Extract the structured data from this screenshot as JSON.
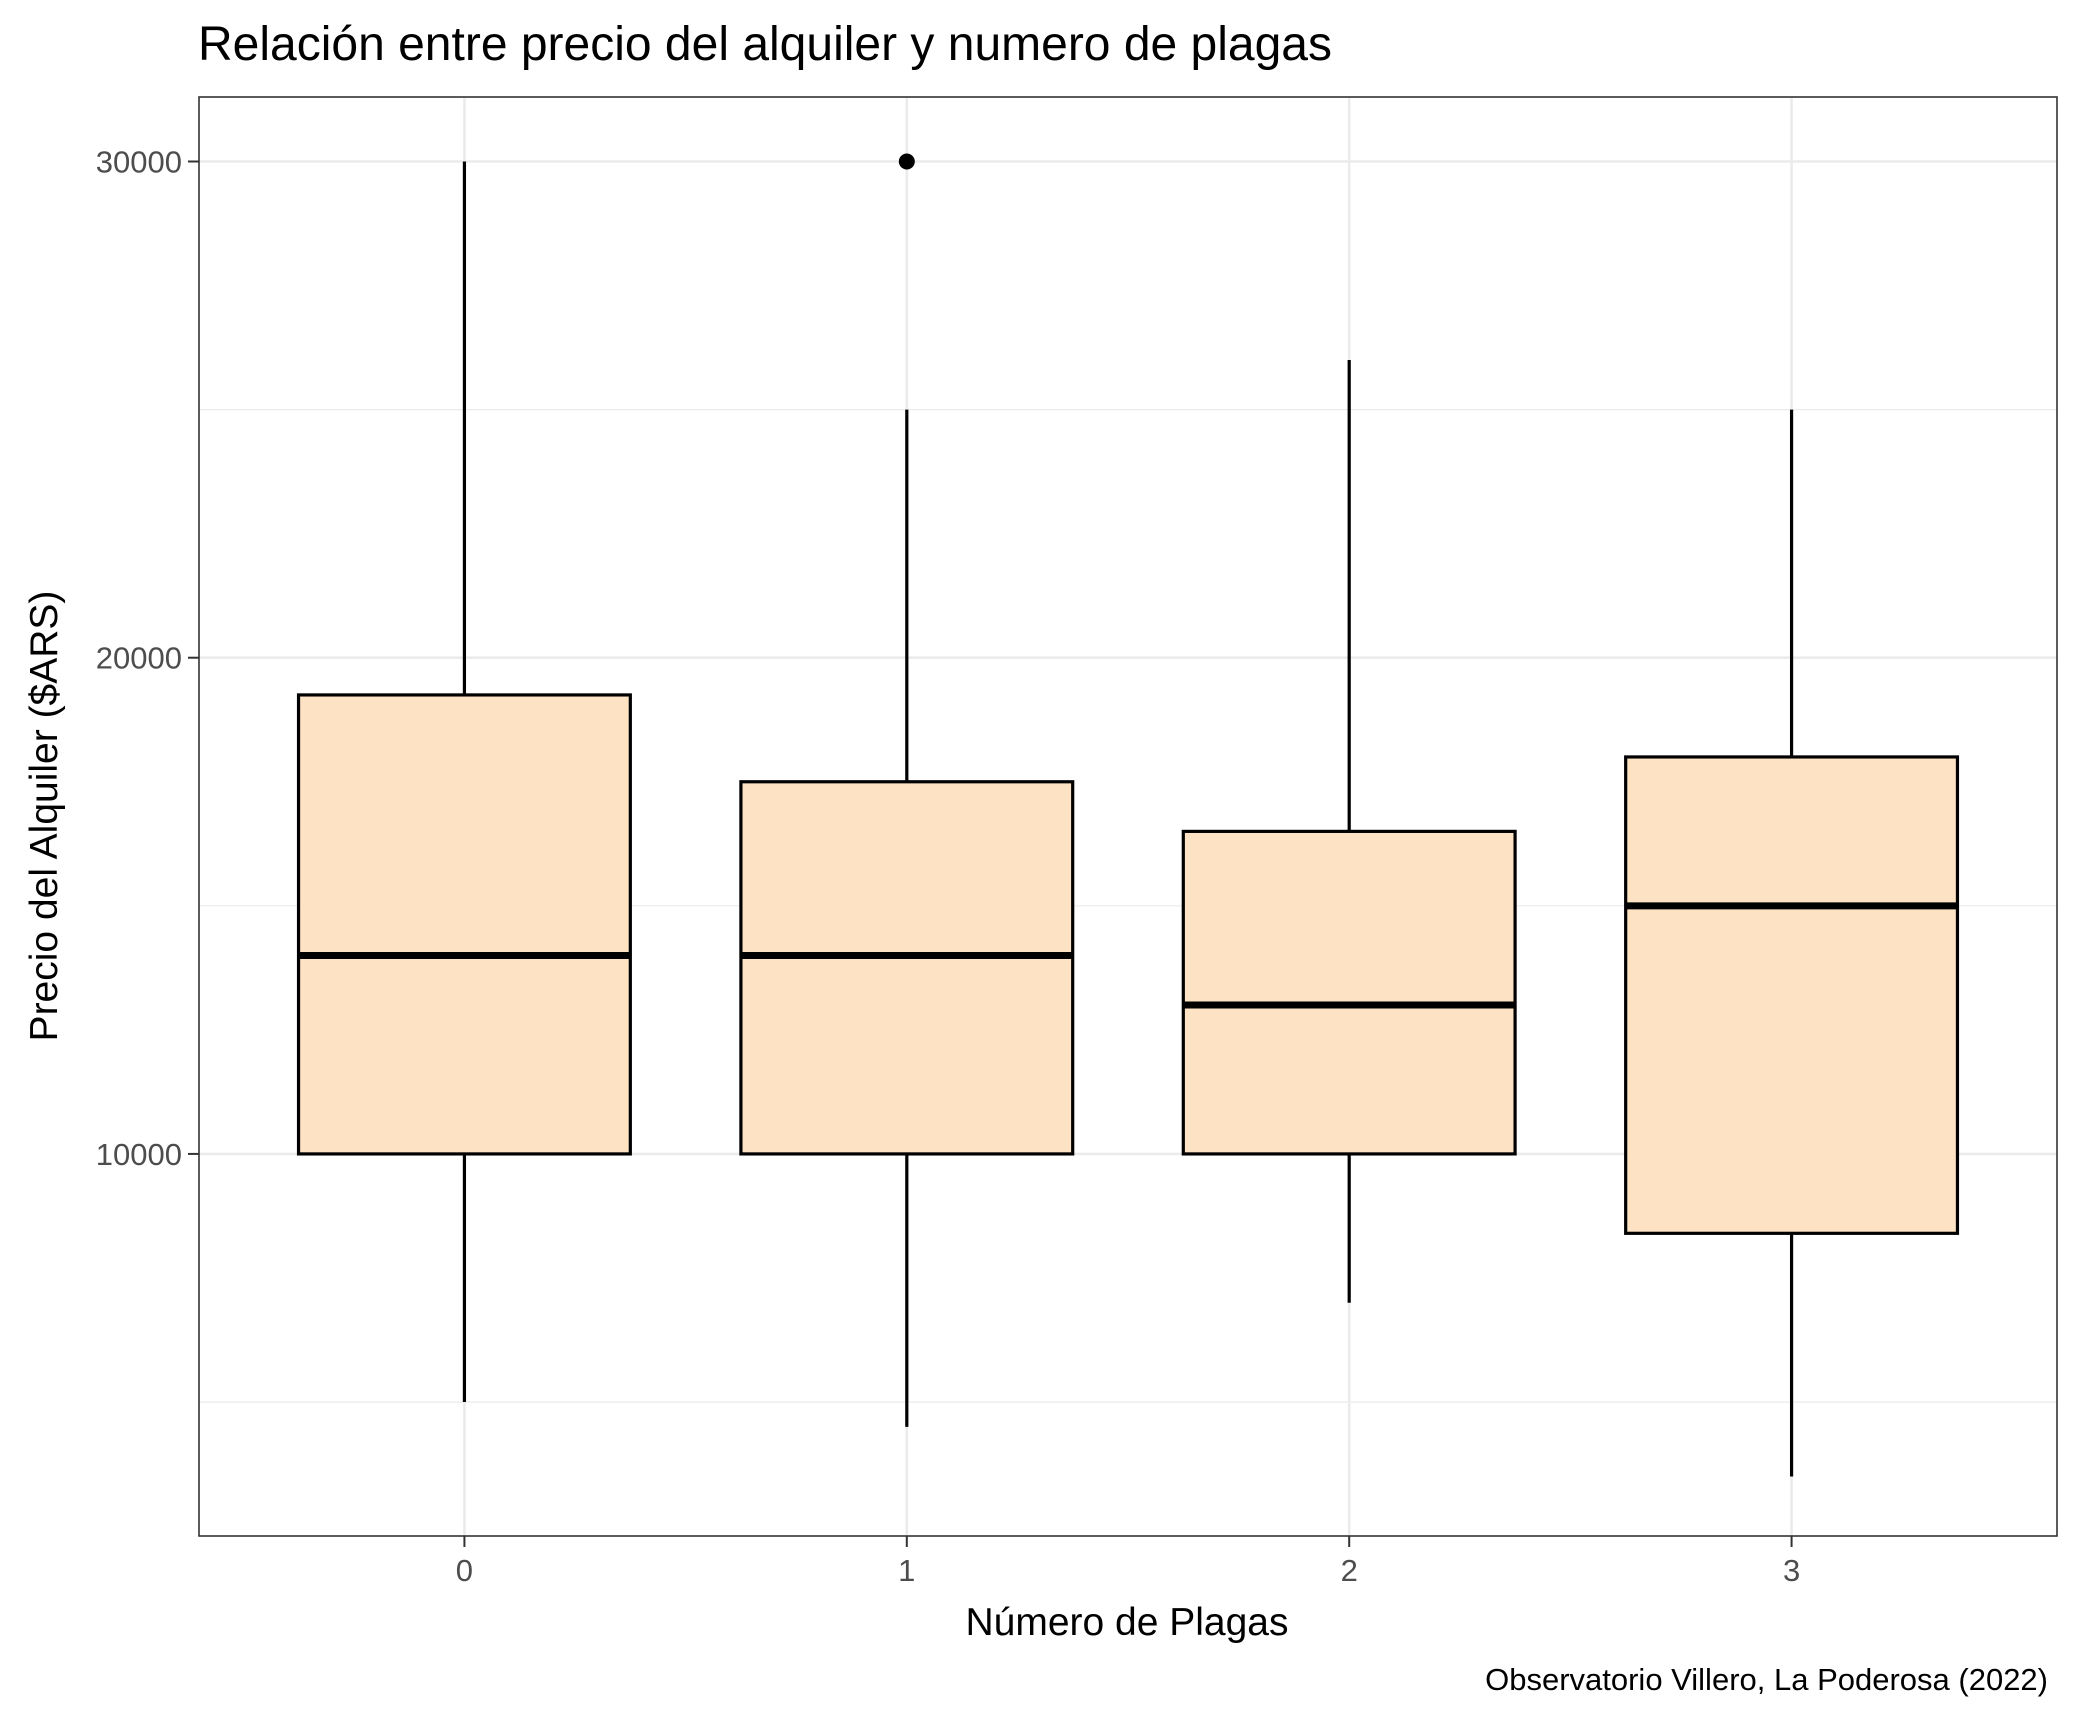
{
  "chart_data": {
    "type": "boxplot",
    "title": "Relación entre precio del alquiler y numero de plagas",
    "xlabel": "Número de Plagas",
    "ylabel": "Precio del Alquiler ($ARS)",
    "caption": "Observatorio Villero, La Poderosa (2022)",
    "categories": [
      "0",
      "1",
      "2",
      "3"
    ],
    "y_ticks": [
      10000,
      20000,
      30000
    ],
    "y_tick_labels": [
      "10000",
      "20000",
      "30000"
    ],
    "ylim": [
      2300,
      31300
    ],
    "grid": true,
    "box_fill": "#fde3c3",
    "box_stroke": "#000000",
    "grid_major_color": "#ebebeb",
    "boxes": [
      {
        "category": "0",
        "whisker_low": 5000,
        "q1": 10000,
        "median": 14000,
        "q3": 19250,
        "whisker_high": 30000,
        "outliers": []
      },
      {
        "category": "1",
        "whisker_low": 4500,
        "q1": 10000,
        "median": 14000,
        "q3": 17500,
        "whisker_high": 25000,
        "outliers": [
          30000
        ]
      },
      {
        "category": "2",
        "whisker_low": 7000,
        "q1": 10000,
        "median": 13000,
        "q3": 16500,
        "whisker_high": 26000,
        "outliers": []
      },
      {
        "category": "3",
        "whisker_low": 3500,
        "q1": 8400,
        "median": 15000,
        "q3": 18000,
        "whisker_high": 25000,
        "outliers": []
      }
    ]
  }
}
